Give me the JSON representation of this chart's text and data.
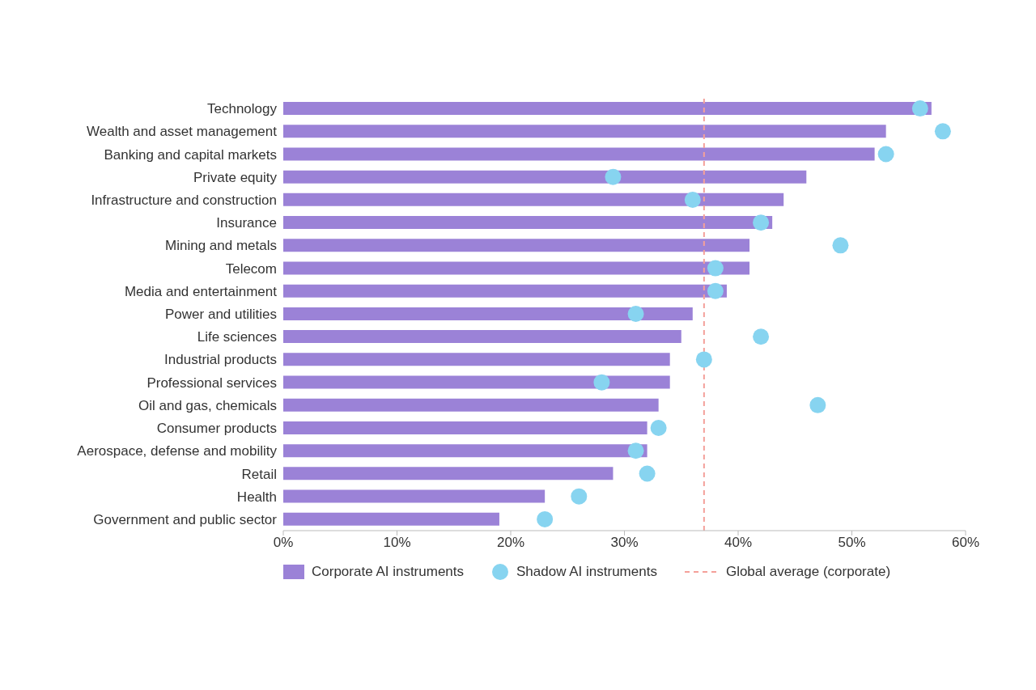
{
  "chart_data": {
    "type": "bar",
    "orientation": "horizontal",
    "categories": [
      "Technology",
      "Wealth and asset management",
      "Banking and capital markets",
      "Private equity",
      "Infrastructure and construction",
      "Insurance",
      "Mining and metals",
      "Telecom",
      "Media and entertainment",
      "Power and utilities",
      "Life sciences",
      "Industrial products",
      "Professional services",
      "Oil and gas, chemicals",
      "Consumer products",
      "Aerospace, defense and mobility",
      "Retail",
      "Health",
      "Government and public sector"
    ],
    "series": [
      {
        "name": "Corporate AI instruments",
        "color": "#9b82d7",
        "values": [
          57,
          53,
          52,
          46,
          44,
          43,
          41,
          41,
          39,
          36,
          35,
          34,
          34,
          33,
          32,
          32,
          29,
          23,
          19
        ]
      },
      {
        "name": "Shadow AI instruments",
        "type": "scatter",
        "color": "#87d4f0",
        "values": [
          56,
          58,
          53,
          29,
          36,
          42,
          49,
          38,
          38,
          31,
          42,
          37,
          28,
          47,
          33,
          31,
          32,
          26,
          23
        ]
      }
    ],
    "ref_lines": [
      {
        "axis": "x",
        "value": 37,
        "label": "Global average (corporate)",
        "color": "#f4a09a",
        "line_style": "dashed"
      }
    ],
    "xlim": [
      0,
      60
    ],
    "xticks": [
      {
        "value": 0,
        "label": "0%"
      },
      {
        "value": 10,
        "label": "10%"
      },
      {
        "value": 20,
        "label": "20%"
      },
      {
        "value": 30,
        "label": "30%"
      },
      {
        "value": 40,
        "label": "40%"
      },
      {
        "value": 50,
        "label": "50%"
      },
      {
        "value": 60,
        "label": "60%"
      }
    ],
    "grid": false,
    "legend": "bottom left",
    "marker": "circle"
  }
}
